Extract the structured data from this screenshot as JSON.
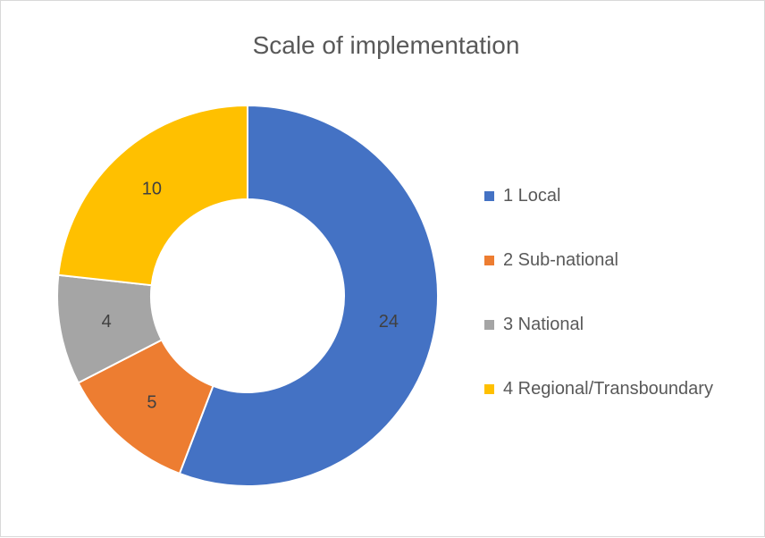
{
  "chart_data": {
    "type": "pie",
    "style": "donut",
    "title": "Scale of implementation",
    "categories": [
      "1 Local",
      "2 Sub-national",
      "3 National",
      "4 Regional/Transboundary"
    ],
    "values": [
      24,
      5,
      4,
      10
    ],
    "colors": [
      "#4472C4",
      "#ED7D31",
      "#A5A5A5",
      "#FFC000"
    ],
    "legend_position": "right",
    "data_labels": true
  }
}
